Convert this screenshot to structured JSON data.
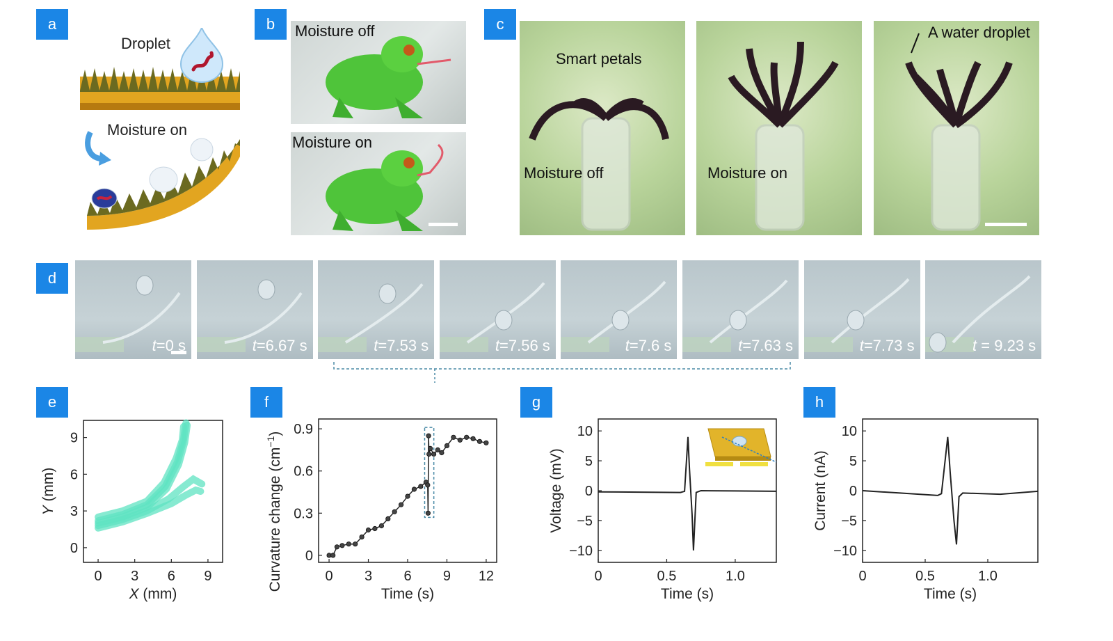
{
  "figure": {
    "panels": {
      "a": {
        "tag": "a",
        "droplet_label": "Droplet",
        "moisture_label": "Moisture on"
      },
      "b": {
        "tag": "b",
        "top_label": "Moisture off",
        "bottom_label": "Moisture on"
      },
      "c": {
        "tag": "c",
        "photo1_title": "Smart petals",
        "photo1_label": "Moisture off",
        "photo2_label": "Moisture on",
        "photo3_label": "A water droplet"
      },
      "d": {
        "tag": "d",
        "frames": [
          {
            "prefix": "t",
            "rest": "=0 s"
          },
          {
            "prefix": "t",
            "rest": "=6.67 s"
          },
          {
            "prefix": "t",
            "rest": "=7.53 s"
          },
          {
            "prefix": "t",
            "rest": "=7.56 s"
          },
          {
            "prefix": "t",
            "rest": "=7.6 s"
          },
          {
            "prefix": "t",
            "rest": "=7.63 s"
          },
          {
            "prefix": "t",
            "rest": "=7.73 s"
          },
          {
            "prefix": "t",
            "rest": " = 9.23 s"
          }
        ]
      },
      "e": {
        "tag": "e"
      },
      "f": {
        "tag": "f"
      },
      "g": {
        "tag": "g"
      },
      "h": {
        "tag": "h"
      }
    },
    "colors": {
      "tag_blue": "#1b86e6",
      "trace_teal": "#5fe3c2",
      "frog_green": "#4fc43a",
      "petal_dark": "#2a1a22"
    }
  },
  "chart_data": [
    {
      "panel": "e",
      "type": "line",
      "xlabel_italic": "X",
      "xlabel_unit": " (mm)",
      "ylabel_italic": "Y",
      "ylabel_unit": " (mm)",
      "xlim": [
        -1.2,
        10.2
      ],
      "ylim": [
        -1.2,
        10.4
      ],
      "xticks": [
        0,
        3,
        6,
        9
      ],
      "yticks": [
        0,
        3,
        6,
        9
      ],
      "grid": false,
      "series": [
        {
          "x": [
            0,
            2,
            4,
            5.5,
            6.5,
            7.0,
            7.2
          ],
          "y": [
            2.2,
            2.7,
            3.5,
            5.0,
            7.0,
            8.8,
            10.2
          ]
        },
        {
          "x": [
            0,
            2,
            4,
            5.6,
            6.6,
            7.1,
            7.3
          ],
          "y": [
            2.0,
            2.5,
            3.3,
            4.8,
            6.8,
            8.6,
            10.0
          ]
        },
        {
          "x": [
            0,
            2,
            4,
            5.8,
            7.0,
            7.8,
            8.5
          ],
          "y": [
            1.8,
            2.3,
            3.0,
            4.0,
            5.0,
            5.6,
            5.2
          ]
        },
        {
          "x": [
            0,
            2,
            4,
            6.0,
            7.2,
            8.0,
            8.4
          ],
          "y": [
            1.6,
            2.1,
            2.8,
            3.6,
            4.3,
            4.7,
            4.6
          ]
        },
        {
          "x": [
            0,
            2,
            4,
            5.4,
            6.4,
            6.9,
            7.0
          ],
          "y": [
            2.5,
            3.0,
            3.8,
            5.3,
            7.3,
            8.8,
            9.9
          ]
        }
      ]
    },
    {
      "panel": "f",
      "type": "scatter",
      "xlabel": "Time (s)",
      "ylabel_prefix": "Curvature change (cm",
      "ylabel_sup": "−1",
      "ylabel_suffix": ")",
      "xlim": [
        -0.8,
        12.8
      ],
      "ylim": [
        -0.05,
        0.97
      ],
      "xticks": [
        0,
        3,
        6,
        9,
        12
      ],
      "yticks": [
        "0",
        "0.3",
        "0.6",
        "0.9"
      ],
      "yticks_values": [
        0,
        0.3,
        0.6,
        0.9
      ],
      "grid": false,
      "highlight_box": {
        "x": [
          7.3,
          8.0
        ],
        "y": [
          0.27,
          0.91
        ]
      },
      "x": [
        0.0,
        0.3,
        0.6,
        1.0,
        1.5,
        2.0,
        2.5,
        3.0,
        3.5,
        4.0,
        4.5,
        5.0,
        5.5,
        6.0,
        6.5,
        7.0,
        7.4,
        7.53,
        7.56,
        7.6,
        7.63,
        7.73,
        8.0,
        8.3,
        8.6,
        9.0,
        9.5,
        10.0,
        10.5,
        11.0,
        11.5,
        12.0
      ],
      "y": [
        0.0,
        0.0,
        0.06,
        0.07,
        0.08,
        0.08,
        0.13,
        0.18,
        0.19,
        0.21,
        0.26,
        0.31,
        0.36,
        0.42,
        0.47,
        0.49,
        0.52,
        0.5,
        0.3,
        0.85,
        0.72,
        0.76,
        0.72,
        0.75,
        0.73,
        0.78,
        0.84,
        0.82,
        0.84,
        0.83,
        0.81,
        0.8
      ]
    },
    {
      "panel": "g",
      "type": "line",
      "xlabel": "Time (s)",
      "ylabel": "Voltage (mV)",
      "xlim": [
        0,
        1.3
      ],
      "ylim": [
        -12,
        12
      ],
      "xticks": [
        "0",
        "0.5",
        "1.0"
      ],
      "xticks_values": [
        0,
        0.5,
        1.0
      ],
      "yticks": [
        "10",
        "5",
        "0",
        "−5",
        "−10"
      ],
      "yticks_values": [
        10,
        5,
        0,
        -5,
        -10
      ],
      "grid": false,
      "x": [
        0.0,
        0.3,
        0.6,
        0.63,
        0.655,
        0.665,
        0.685,
        0.695,
        0.715,
        0.75,
        1.0,
        1.3
      ],
      "y": [
        -0.2,
        -0.25,
        -0.3,
        -0.1,
        9.0,
        4.0,
        -4.0,
        -10.0,
        -0.3,
        0.0,
        -0.05,
        -0.1
      ]
    },
    {
      "panel": "h",
      "type": "line",
      "xlabel": "Time (s)",
      "ylabel": "Current (nA)",
      "xlim": [
        0,
        1.4
      ],
      "ylim": [
        -12,
        12
      ],
      "xticks": [
        "0",
        "0.5",
        "1.0"
      ],
      "xticks_values": [
        0,
        0.5,
        1.0
      ],
      "yticks": [
        "10",
        "5",
        "0",
        "−5",
        "−10"
      ],
      "yticks_values": [
        10,
        5,
        0,
        -5,
        -10
      ],
      "grid": false,
      "x": [
        0.0,
        0.3,
        0.6,
        0.63,
        0.68,
        0.7,
        0.73,
        0.75,
        0.77,
        0.8,
        1.1,
        1.4
      ],
      "y": [
        0.0,
        -0.4,
        -0.8,
        -0.5,
        9.0,
        3.0,
        -5.0,
        -9.0,
        -1.0,
        -0.4,
        -0.6,
        -0.1
      ]
    }
  ]
}
